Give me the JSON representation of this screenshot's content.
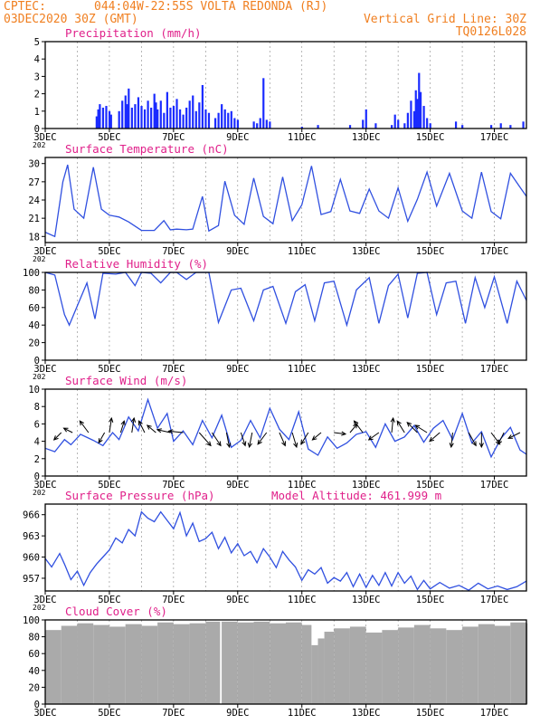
{
  "header": {
    "source": "CPTEC:",
    "location": "044:04W-22:55S  VOLTA REDONDA (RJ)",
    "run": "03DEC2020 30Z (GMT)",
    "grid_note": "Vertical Grid Line: 30Z",
    "code": "TQ0126L028"
  },
  "colors": {
    "header": "#f07f20",
    "title": "#e0208a",
    "line": "#3050e0",
    "bar": "#1a2bff",
    "cloud": "#aaaaaa",
    "grid": "#888888"
  },
  "x_axis": {
    "start_day": 3,
    "end_day": 18,
    "tick_labels": [
      "3DEC",
      "5DEC",
      "7DEC",
      "9DEC",
      "11DEC",
      "13DEC",
      "15DEC",
      "17DEC"
    ],
    "tick_days": [
      3,
      5,
      7,
      9,
      11,
      13,
      15,
      17
    ],
    "year_fragment": "202"
  },
  "chart_data": [
    {
      "type": "bar",
      "title": "Precipitation (mm/h)",
      "ylim": [
        0,
        5
      ],
      "yticks": [
        0,
        1,
        2,
        3,
        4,
        5
      ],
      "x_days": [
        4.6,
        4.65,
        4.7,
        4.8,
        4.9,
        5.0,
        5.05,
        5.3,
        5.4,
        5.5,
        5.55,
        5.6,
        5.7,
        5.8,
        5.9,
        6.0,
        6.1,
        6.2,
        6.3,
        6.4,
        6.45,
        6.5,
        6.6,
        6.7,
        6.8,
        6.9,
        7.0,
        7.1,
        7.2,
        7.3,
        7.4,
        7.5,
        7.6,
        7.7,
        7.8,
        7.9,
        8.0,
        8.1,
        8.3,
        8.4,
        8.5,
        8.6,
        8.7,
        8.8,
        8.9,
        9.0,
        9.5,
        9.6,
        9.7,
        9.8,
        9.9,
        10.0,
        11.0,
        11.5,
        12.5,
        12.9,
        13.0,
        13.3,
        13.8,
        13.9,
        14.0,
        14.2,
        14.3,
        14.4,
        14.5,
        14.55,
        14.6,
        14.65,
        14.7,
        14.8,
        14.9,
        15.0,
        15.8,
        16.0,
        16.9,
        17.2,
        17.5,
        17.9
      ],
      "values": [
        0.7,
        1.1,
        1.4,
        1.2,
        1.3,
        1.0,
        0.8,
        1.0,
        1.6,
        1.9,
        1.4,
        2.3,
        1.2,
        1.4,
        1.8,
        1.3,
        1.1,
        1.6,
        1.2,
        2.0,
        1.5,
        1.1,
        1.6,
        0.9,
        2.1,
        1.2,
        1.3,
        1.7,
        1.1,
        0.8,
        1.2,
        1.6,
        1.9,
        1.0,
        1.5,
        2.5,
        1.1,
        0.9,
        0.6,
        0.9,
        1.4,
        1.1,
        0.9,
        1.0,
        0.6,
        0.5,
        0.4,
        0.3,
        0.6,
        2.9,
        0.5,
        0.4,
        0.1,
        0.2,
        0.2,
        0.5,
        1.1,
        0.3,
        0.2,
        0.8,
        0.5,
        0.3,
        0.9,
        1.6,
        1.0,
        2.2,
        1.7,
        3.2,
        2.1,
        1.3,
        0.6,
        0.3,
        0.4,
        0.2,
        0.2,
        0.3,
        0.2,
        0.4
      ]
    },
    {
      "type": "line",
      "title": "Surface Temperature (nC)",
      "ylim": [
        17,
        31
      ],
      "yticks": [
        18,
        21,
        24,
        27,
        30
      ],
      "x": [
        3.0,
        3.3,
        3.55,
        3.7,
        3.9,
        4.2,
        4.5,
        4.75,
        5.0,
        5.3,
        5.6,
        6.0,
        6.4,
        6.7,
        6.9,
        7.1,
        7.4,
        7.6,
        7.9,
        8.1,
        8.4,
        8.6,
        8.9,
        9.2,
        9.5,
        9.8,
        10.1,
        10.4,
        10.7,
        11.0,
        11.3,
        11.6,
        11.9,
        12.2,
        12.5,
        12.8,
        13.1,
        13.4,
        13.7,
        14.0,
        14.3,
        14.6,
        14.9,
        15.2,
        15.6,
        16.0,
        16.3,
        16.6,
        16.9,
        17.2,
        17.5,
        17.8,
        18.0
      ],
      "y": [
        18.7,
        18.0,
        27.0,
        29.8,
        22.5,
        21.0,
        29.4,
        22.5,
        21.5,
        21.2,
        20.4,
        19.0,
        19.0,
        20.6,
        19.1,
        19.2,
        19.1,
        19.2,
        24.6,
        18.9,
        19.8,
        27.1,
        21.5,
        20.0,
        27.6,
        21.3,
        20.1,
        27.8,
        20.6,
        23.2,
        29.6,
        21.6,
        22.1,
        27.4,
        22.2,
        21.8,
        25.8,
        22.2,
        21.0,
        26.0,
        20.5,
        24.1,
        28.6,
        23.0,
        28.4,
        22.2,
        21.0,
        28.6,
        22.1,
        20.9,
        28.4,
        26.1,
        24.6
      ]
    },
    {
      "type": "line",
      "title": "Relative Humidity (%)",
      "ylim": [
        0,
        100
      ],
      "yticks": [
        0,
        20,
        40,
        60,
        80,
        100
      ],
      "x": [
        3.0,
        3.3,
        3.6,
        3.75,
        4.0,
        4.3,
        4.55,
        4.8,
        5.2,
        5.5,
        5.8,
        6.0,
        6.3,
        6.6,
        6.9,
        7.1,
        7.4,
        7.7,
        8.1,
        8.4,
        8.8,
        9.1,
        9.5,
        9.8,
        10.1,
        10.5,
        10.8,
        11.1,
        11.4,
        11.7,
        12.0,
        12.4,
        12.7,
        13.1,
        13.4,
        13.7,
        14.0,
        14.3,
        14.6,
        14.9,
        15.2,
        15.5,
        15.8,
        16.1,
        16.4,
        16.7,
        17.0,
        17.4,
        17.7,
        18.0
      ],
      "y": [
        100,
        97,
        52,
        40,
        62,
        88,
        47,
        99,
        98,
        100,
        85,
        100,
        99,
        88,
        100,
        100,
        92,
        100,
        100,
        43,
        80,
        82,
        45,
        80,
        84,
        42,
        78,
        86,
        45,
        88,
        90,
        40,
        80,
        94,
        42,
        85,
        98,
        48,
        99,
        100,
        52,
        88,
        90,
        42,
        94,
        60,
        95,
        42,
        90,
        68
      ]
    },
    {
      "type": "line",
      "title": "Surface Wind (m/s)",
      "ylim": [
        0,
        10
      ],
      "yticks": [
        0,
        2,
        4,
        6,
        8,
        10
      ],
      "x": [
        3.0,
        3.3,
        3.6,
        3.8,
        4.1,
        4.5,
        4.8,
        5.1,
        5.3,
        5.6,
        5.9,
        6.2,
        6.5,
        6.8,
        7.0,
        7.3,
        7.6,
        7.9,
        8.2,
        8.5,
        8.8,
        9.1,
        9.4,
        9.7,
        10.0,
        10.3,
        10.6,
        10.9,
        11.2,
        11.5,
        11.8,
        12.1,
        12.4,
        12.7,
        13.0,
        13.3,
        13.6,
        13.9,
        14.2,
        14.5,
        14.8,
        15.1,
        15.4,
        15.7,
        16.0,
        16.3,
        16.6,
        16.9,
        17.2,
        17.5,
        17.8,
        18.0
      ],
      "y": [
        3.2,
        2.8,
        4.2,
        3.6,
        4.8,
        4.1,
        3.5,
        5.0,
        4.2,
        6.8,
        5.2,
        8.8,
        5.5,
        7.2,
        4.0,
        5.2,
        3.6,
        6.4,
        4.4,
        7.0,
        3.3,
        4.1,
        6.4,
        4.4,
        7.8,
        5.4,
        4.2,
        7.4,
        3.1,
        2.4,
        4.5,
        3.2,
        3.8,
        4.8,
        5.1,
        3.3,
        6.0,
        4.0,
        4.5,
        5.8,
        3.9,
        5.5,
        6.4,
        4.2,
        7.2,
        3.8,
        5.1,
        2.2,
        4.3,
        5.6,
        3.0,
        2.5
      ],
      "arrows": {
        "x": [
          3.5,
          3.85,
          4.35,
          4.85,
          5.0,
          5.35,
          5.7,
          6.1,
          6.45,
          6.9,
          7.3,
          7.8,
          8.2,
          8.65,
          9.1,
          9.45,
          9.9,
          10.3,
          10.7,
          11.2,
          11.6,
          12.0,
          12.5,
          12.9,
          13.4,
          13.8,
          14.2,
          14.6,
          14.9,
          15.3,
          15.7,
          16.2,
          16.6,
          16.9,
          17.3,
          17.8
        ],
        "u": [
          -0.5,
          -0.6,
          -0.6,
          -0.4,
          0.15,
          0.25,
          0.15,
          -0.4,
          -0.6,
          -0.9,
          -1.0,
          0.8,
          0.6,
          0.2,
          0.3,
          -0.2,
          -0.6,
          0.4,
          0.3,
          -0.5,
          -0.6,
          0.8,
          0.5,
          -0.6,
          -0.7,
          0.1,
          -0.5,
          -0.7,
          -0.8,
          -0.7,
          -0.1,
          0.5,
          0.0,
          0.6,
          -0.4,
          -0.8
        ],
        "v": [
          -0.5,
          0.3,
          0.8,
          -0.7,
          1.0,
          0.8,
          1.0,
          0.8,
          0.5,
          0.2,
          0.1,
          -0.9,
          -0.9,
          -1.0,
          -0.9,
          -1.0,
          -0.8,
          -0.9,
          -1.0,
          -0.8,
          -0.5,
          -0.1,
          0.6,
          0.8,
          -0.5,
          1.0,
          0.8,
          0.7,
          0.5,
          -0.6,
          -1.0,
          -0.9,
          -1.0,
          -0.8,
          -0.8,
          -0.4
        ]
      }
    },
    {
      "type": "line",
      "title": "Surface Pressure (hPa)",
      "annotation": "Model Altitude: 461.999 m",
      "ylim": [
        955.2,
        967.5
      ],
      "yticks": [
        957,
        960,
        963,
        966
      ],
      "x": [
        3.0,
        3.2,
        3.45,
        3.6,
        3.8,
        4.0,
        4.2,
        4.4,
        4.6,
        4.8,
        5.0,
        5.2,
        5.4,
        5.6,
        5.8,
        6.0,
        6.2,
        6.4,
        6.6,
        6.8,
        7.0,
        7.2,
        7.4,
        7.6,
        7.8,
        8.0,
        8.2,
        8.4,
        8.6,
        8.8,
        9.0,
        9.2,
        9.4,
        9.6,
        9.8,
        10.0,
        10.2,
        10.4,
        10.6,
        10.8,
        11.0,
        11.2,
        11.4,
        11.6,
        11.8,
        12.0,
        12.2,
        12.4,
        12.6,
        12.8,
        13.0,
        13.2,
        13.4,
        13.6,
        13.8,
        14.0,
        14.2,
        14.4,
        14.6,
        14.8,
        15.0,
        15.3,
        15.6,
        15.9,
        16.2,
        16.5,
        16.8,
        17.1,
        17.4,
        17.7,
        18.0
      ],
      "y": [
        959.8,
        958.6,
        960.5,
        959.0,
        956.8,
        958.0,
        956.0,
        957.8,
        959.0,
        960.0,
        961.0,
        962.7,
        962.0,
        963.9,
        963.0,
        966.4,
        965.5,
        965.0,
        966.4,
        965.2,
        964.0,
        966.3,
        963.0,
        964.8,
        962.2,
        962.6,
        963.5,
        961.2,
        962.8,
        960.6,
        961.9,
        960.2,
        960.8,
        959.2,
        961.2,
        960.0,
        958.5,
        960.8,
        959.6,
        958.6,
        956.7,
        958.2,
        957.6,
        958.5,
        956.3,
        957.1,
        956.6,
        957.8,
        955.8,
        957.6,
        955.7,
        957.4,
        956.0,
        957.8,
        955.9,
        957.8,
        956.3,
        957.3,
        955.4,
        956.7,
        955.5,
        956.4,
        955.6,
        956.0,
        955.3,
        956.3,
        955.5,
        955.9,
        955.4,
        955.8,
        956.6
      ]
    },
    {
      "type": "bar",
      "title": "Cloud Cover (%)",
      "ylim": [
        0,
        100
      ],
      "yticks": [
        0,
        20,
        40,
        60,
        80,
        100
      ],
      "x_days": [
        3.0,
        3.5,
        4.0,
        4.5,
        5.0,
        5.5,
        6.0,
        6.5,
        7.0,
        7.5,
        8.0,
        8.45,
        8.5,
        9.0,
        9.5,
        10.0,
        10.5,
        11.0,
        11.3,
        11.5,
        11.7,
        12.0,
        12.5,
        13.0,
        13.5,
        14.0,
        14.5,
        15.0,
        15.5,
        16.0,
        16.5,
        17.0,
        17.5,
        18.0
      ],
      "values": [
        88,
        93,
        96,
        94,
        92,
        95,
        93,
        97,
        95,
        96,
        98,
        4,
        98,
        97,
        98,
        96,
        97,
        94,
        70,
        78,
        86,
        90,
        92,
        85,
        88,
        91,
        94,
        90,
        88,
        92,
        95,
        93,
        97,
        96
      ]
    }
  ]
}
